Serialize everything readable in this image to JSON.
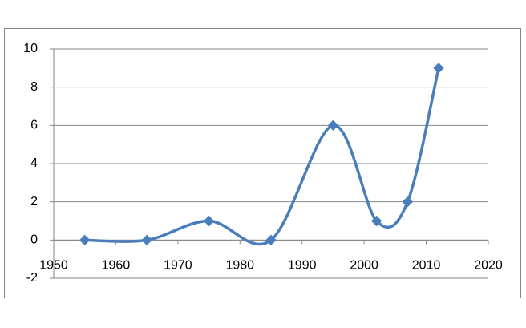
{
  "chart_data": {
    "type": "scatter-smooth",
    "x": [
      1955,
      1965,
      1975,
      1985,
      1995,
      2002,
      2007,
      2012
    ],
    "series": [
      {
        "color": "#4a7ebb",
        "values": [
          0,
          0,
          1,
          0,
          6,
          1,
          2,
          9
        ]
      }
    ],
    "xlim": [
      1950,
      2020
    ],
    "xticks": [
      1950,
      1960,
      1970,
      1980,
      1990,
      2000,
      2010,
      2020
    ],
    "ylim": [
      -2,
      10
    ],
    "yticks": [
      -2,
      0,
      2,
      4,
      6,
      8,
      10
    ],
    "grid": true
  }
}
